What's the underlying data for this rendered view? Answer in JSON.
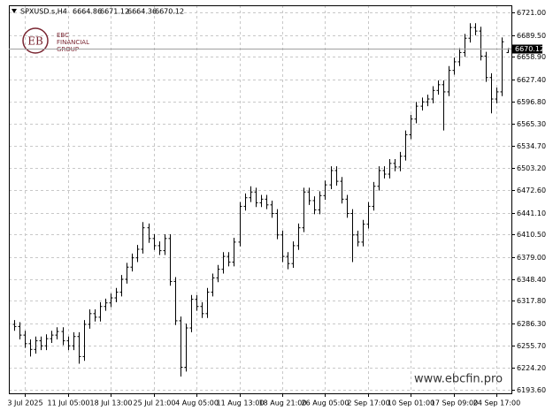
{
  "chart_data": {
    "type": "ohlc",
    "symbol": "SPXUSD.s,H4",
    "logo": {
      "mark": "EB",
      "lines": [
        "EBC",
        "FINANCIAL",
        "GROUP"
      ]
    },
    "watermark": "www.ebcfin.pro",
    "color": "#000000",
    "grid": true,
    "categories": [
      null,
      null,
      "3 Jul 2025",
      null,
      null,
      null,
      null,
      null,
      null,
      null,
      "11 Jul 05:00",
      null,
      null,
      null,
      null,
      null,
      null,
      null,
      "18 Jul 13:00",
      null,
      null,
      null,
      null,
      null,
      null,
      null,
      "25 Jul 21:00",
      null,
      null,
      null,
      null,
      null,
      null,
      null,
      "4 Aug 05:00",
      null,
      null,
      null,
      null,
      null,
      null,
      null,
      "11 Aug 13:00",
      null,
      null,
      null,
      null,
      null,
      null,
      null,
      "18 Aug 21:00",
      null,
      null,
      null,
      null,
      null,
      null,
      null,
      "26 Aug 05:00",
      null,
      null,
      null,
      null,
      null,
      null,
      null,
      "2 Sep 17:00",
      null,
      null,
      null,
      null,
      null,
      null,
      null,
      "10 Sep 01:00",
      null,
      null,
      null,
      null,
      null,
      null,
      null,
      "17 Sep 09:00",
      null,
      null,
      null,
      null,
      null,
      null,
      null,
      "24 Sep 17:00",
      null,
      null
    ],
    "open": [
      6285,
      6282,
      6270,
      6258,
      6250,
      6262,
      6255,
      6265,
      6270,
      6275,
      6262,
      6255,
      6268,
      6240,
      6285,
      6300,
      6295,
      6310,
      6315,
      6322,
      6330,
      6348,
      6365,
      6378,
      6390,
      6420,
      6405,
      6395,
      6388,
      6405,
      6345,
      6290,
      6225,
      6280,
      6320,
      6310,
      6300,
      6330,
      6350,
      6362,
      6380,
      6372,
      6400,
      6450,
      6462,
      6470,
      6455,
      6460,
      6452,
      6440,
      6410,
      6380,
      6370,
      6395,
      6420,
      6470,
      6458,
      6445,
      6465,
      6480,
      6500,
      6485,
      6460,
      6440,
      6410,
      6400,
      6425,
      6450,
      6478,
      6500,
      6495,
      6510,
      6505,
      6520,
      6550,
      6572,
      6590,
      6596,
      6600,
      6612,
      6620,
      6610,
      6640,
      6652,
      6665,
      6685,
      6700,
      6695,
      6660,
      6630,
      6600,
      6610,
      6664.86
    ],
    "high": [
      6291,
      6288,
      6276,
      6264,
      6268,
      6268,
      6271,
      6276,
      6281,
      6281,
      6268,
      6274,
      6274,
      6291,
      6306,
      6306,
      6316,
      6321,
      6328,
      6336,
      6354,
      6371,
      6384,
      6396,
      6428,
      6426,
      6411,
      6401,
      6411,
      6411,
      6351,
      6296,
      6286,
      6326,
      6326,
      6316,
      6336,
      6356,
      6368,
      6386,
      6386,
      6406,
      6456,
      6468,
      6478,
      6476,
      6466,
      6466,
      6458,
      6446,
      6416,
      6386,
      6401,
      6426,
      6476,
      6476,
      6464,
      6471,
      6486,
      6506,
      6506,
      6491,
      6466,
      6446,
      6416,
      6431,
      6456,
      6484,
      6506,
      6506,
      6516,
      6516,
      6526,
      6556,
      6578,
      6596,
      6602,
      6606,
      6618,
      6626,
      6626,
      6646,
      6658,
      6671,
      6691,
      6706,
      6706,
      6701,
      6666,
      6636,
      6616,
      6686,
      6671.12
    ],
    "low": [
      6276,
      6264,
      6252,
      6240,
      6244,
      6249,
      6249,
      6259,
      6264,
      6256,
      6249,
      6249,
      6230,
      6234,
      6279,
      6289,
      6289,
      6304,
      6309,
      6316,
      6324,
      6342,
      6359,
      6372,
      6384,
      6399,
      6389,
      6382,
      6382,
      6339,
      6284,
      6212,
      6219,
      6274,
      6304,
      6294,
      6294,
      6324,
      6344,
      6356,
      6366,
      6366,
      6394,
      6444,
      6456,
      6449,
      6449,
      6446,
      6434,
      6404,
      6372,
      6362,
      6364,
      6389,
      6414,
      6452,
      6439,
      6439,
      6459,
      6474,
      6479,
      6454,
      6434,
      6372,
      6394,
      6394,
      6419,
      6444,
      6472,
      6489,
      6489,
      6499,
      6499,
      6514,
      6544,
      6566,
      6584,
      6590,
      6594,
      6606,
      6556,
      6604,
      6634,
      6646,
      6659,
      6679,
      6689,
      6654,
      6624,
      6580,
      6594,
      6604,
      6664.36
    ],
    "close": [
      6282,
      6270,
      6258,
      6250,
      6262,
      6255,
      6265,
      6270,
      6275,
      6262,
      6255,
      6268,
      6240,
      6285,
      6300,
      6295,
      6310,
      6315,
      6322,
      6330,
      6348,
      6365,
      6378,
      6390,
      6420,
      6405,
      6395,
      6388,
      6405,
      6345,
      6290,
      6225,
      6280,
      6320,
      6310,
      6300,
      6330,
      6350,
      6362,
      6380,
      6372,
      6400,
      6450,
      6462,
      6470,
      6455,
      6460,
      6452,
      6440,
      6410,
      6380,
      6370,
      6395,
      6420,
      6470,
      6458,
      6445,
      6465,
      6480,
      6500,
      6485,
      6460,
      6440,
      6410,
      6400,
      6425,
      6450,
      6478,
      6500,
      6495,
      6510,
      6505,
      6520,
      6550,
      6572,
      6590,
      6596,
      6600,
      6612,
      6620,
      6610,
      6640,
      6652,
      6665,
      6685,
      6700,
      6695,
      6660,
      6630,
      6600,
      6610,
      6680,
      6670.12
    ],
    "ylim": [
      6188.6,
      6731
    ],
    "yticks": [
      {
        "value": 6193.6,
        "label": "6193.60"
      },
      {
        "value": 6224.2,
        "label": "6224.20"
      },
      {
        "value": 6255.7,
        "label": "6255.70"
      },
      {
        "value": 6286.3,
        "label": "6286.30"
      },
      {
        "value": 6317.8,
        "label": "6317.80"
      },
      {
        "value": 6348.4,
        "label": "6348.40"
      },
      {
        "value": 6379,
        "label": "6379.00"
      },
      {
        "value": 6410.5,
        "label": "6410.50"
      },
      {
        "value": 6441.1,
        "label": "6441.10"
      },
      {
        "value": 6472.6,
        "label": "6472.60"
      },
      {
        "value": 6503.2,
        "label": "6503.20"
      },
      {
        "value": 6534.7,
        "label": "6534.70"
      },
      {
        "value": 6565.3,
        "label": "6565.30"
      },
      {
        "value": 6596.8,
        "label": "6596.80"
      },
      {
        "value": 6627.4,
        "label": "6627.40"
      },
      {
        "value": 6658.9,
        "label": "6658.90"
      },
      {
        "value": 6689.5,
        "label": "6689.50"
      },
      {
        "value": 6721,
        "label": "6721.00"
      }
    ]
  }
}
